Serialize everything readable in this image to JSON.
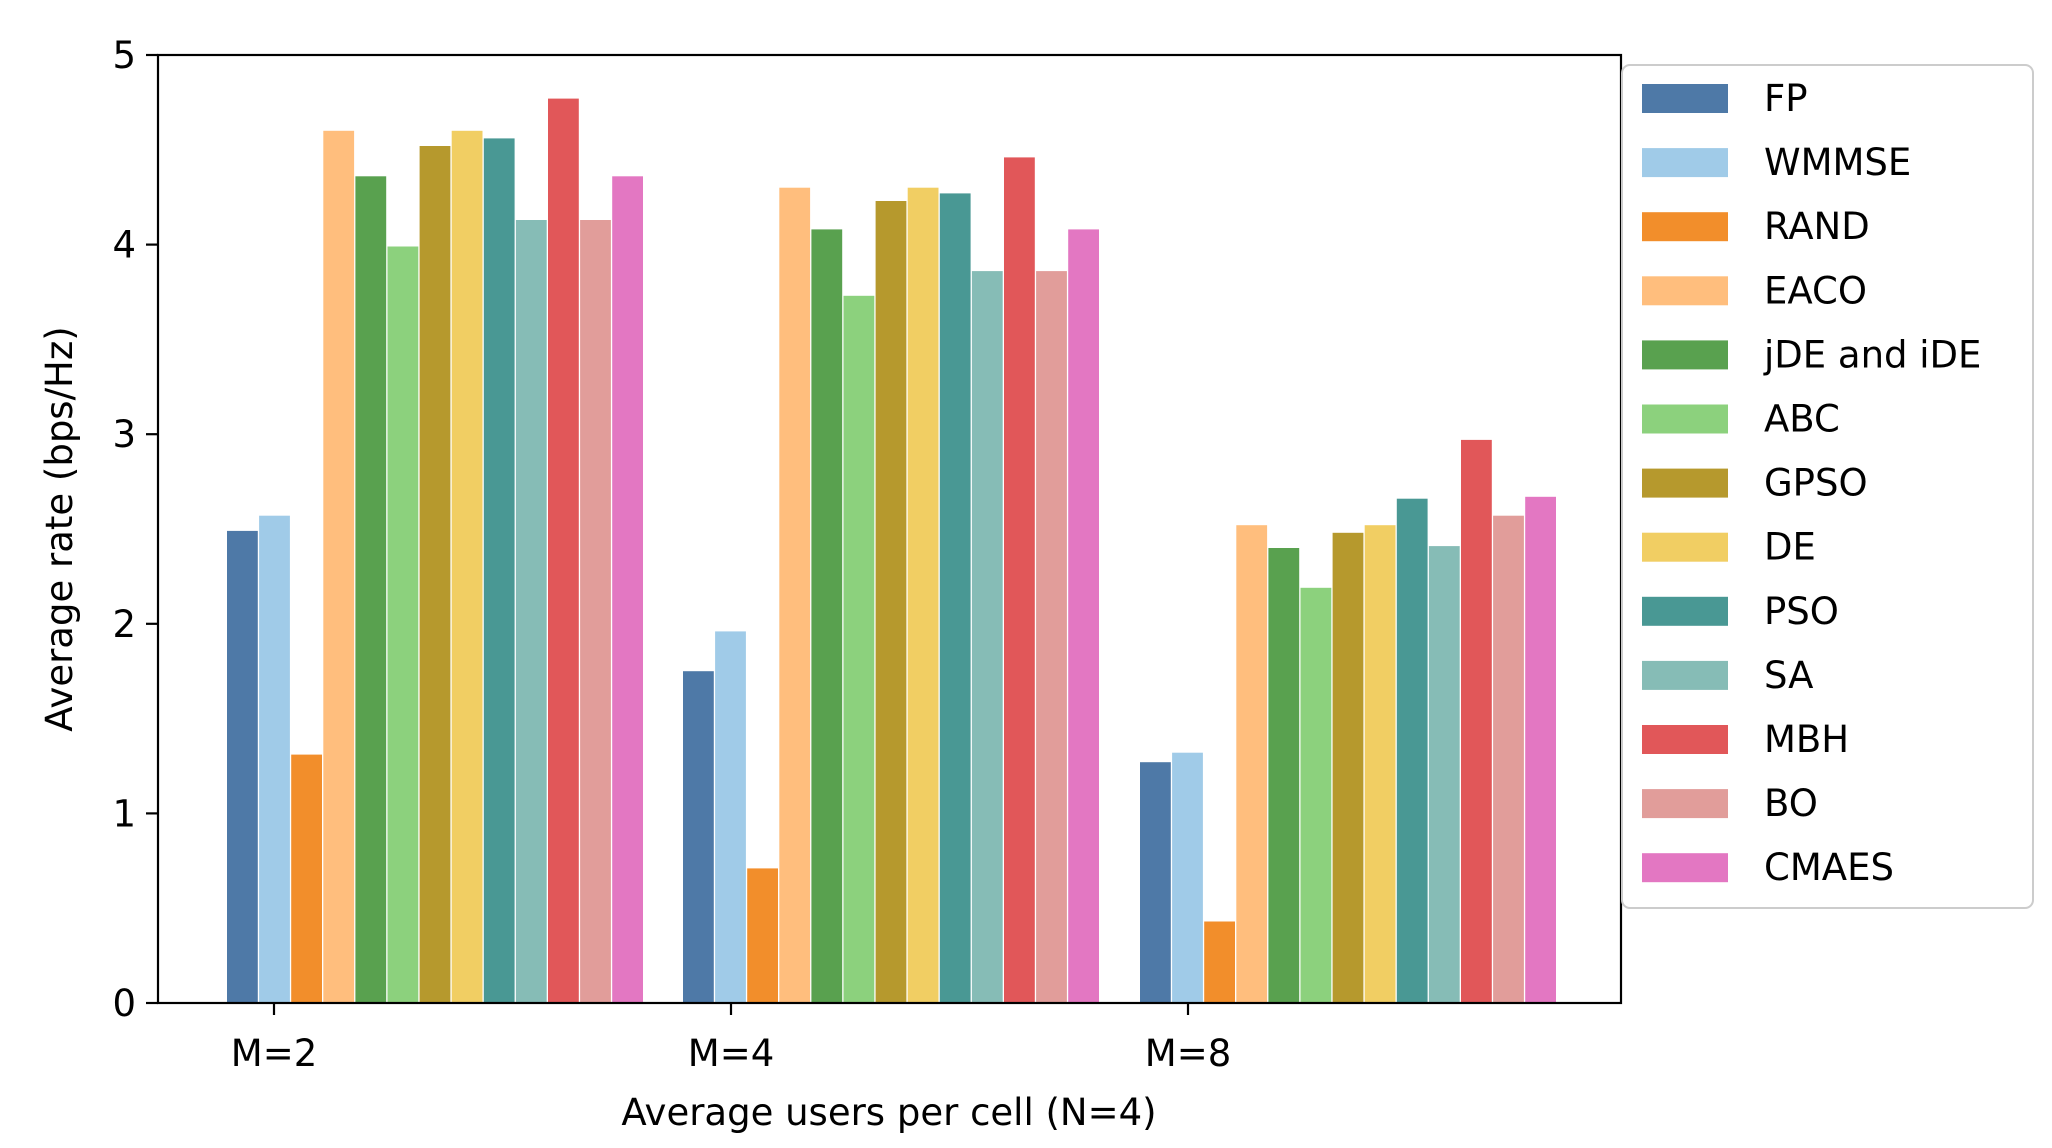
{
  "chart_data": {
    "type": "bar",
    "title": "",
    "xlabel": "Average users per cell (N=4)",
    "ylabel": "Average rate (bps/Hz)",
    "ylim": [
      0,
      5
    ],
    "yticks": [
      0,
      1,
      2,
      3,
      4,
      5
    ],
    "categories": [
      "M=2",
      "M=4",
      "M=8"
    ],
    "legend_position": "outside-right",
    "series": [
      {
        "name": "FP",
        "color": "#4e79a7",
        "values": [
          2.49,
          1.75,
          1.27
        ]
      },
      {
        "name": "WMMSE",
        "color": "#a0cbe8",
        "values": [
          2.57,
          1.96,
          1.32
        ]
      },
      {
        "name": "RAND",
        "color": "#f28e2b",
        "values": [
          1.31,
          0.71,
          0.43
        ]
      },
      {
        "name": "EACO",
        "color": "#ffbe7d",
        "values": [
          4.6,
          4.3,
          2.52
        ]
      },
      {
        "name": "jDE and iDE",
        "color": "#59a14f",
        "values": [
          4.36,
          4.08,
          2.4
        ]
      },
      {
        "name": "ABC",
        "color": "#8cd17d",
        "values": [
          3.99,
          3.73,
          2.19
        ]
      },
      {
        "name": "GPSO",
        "color": "#b6992d",
        "values": [
          4.52,
          4.23,
          2.48
        ]
      },
      {
        "name": "DE",
        "color": "#f1ce63",
        "values": [
          4.6,
          4.3,
          2.52
        ]
      },
      {
        "name": "PSO",
        "color": "#499894",
        "values": [
          4.56,
          4.27,
          2.66
        ]
      },
      {
        "name": "SA",
        "color": "#86bcb6",
        "values": [
          4.13,
          3.86,
          2.41
        ]
      },
      {
        "name": "MBH",
        "color": "#e15759",
        "values": [
          4.77,
          4.46,
          2.97
        ]
      },
      {
        "name": "BO",
        "color": "#e19d9a",
        "values": [
          4.13,
          3.86,
          2.57
        ]
      },
      {
        "name": "CMAES",
        "color": "#e377c2",
        "values": [
          4.36,
          4.08,
          2.67
        ]
      }
    ]
  }
}
